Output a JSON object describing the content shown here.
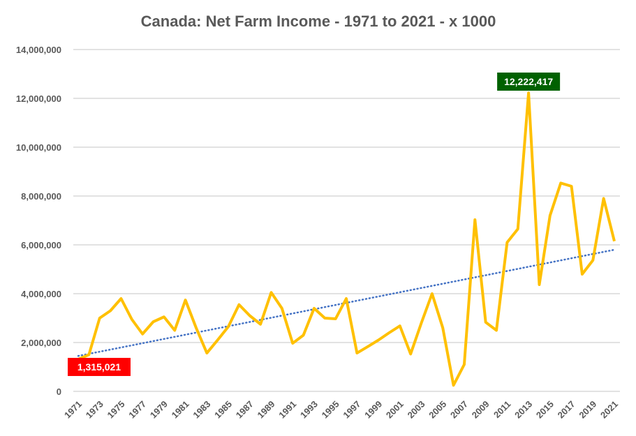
{
  "chart_data": {
    "type": "line",
    "title": "Canada: Net Farm Income - 1971 to 2021 - x 1000",
    "xlabel": "",
    "ylabel": "",
    "ylim": [
      0,
      14000000
    ],
    "yticks": [
      "0",
      "2,000,000",
      "4,000,000",
      "6,000,000",
      "8,000,000",
      "10,000,000",
      "12,000,000",
      "14,000,000"
    ],
    "ytick_values": [
      0,
      2000000,
      4000000,
      6000000,
      8000000,
      10000000,
      12000000,
      14000000
    ],
    "grid": true,
    "x": [
      1971,
      1972,
      1973,
      1974,
      1975,
      1976,
      1977,
      1978,
      1979,
      1980,
      1981,
      1982,
      1983,
      1984,
      1985,
      1986,
      1987,
      1988,
      1989,
      1990,
      1991,
      1992,
      1993,
      1994,
      1995,
      1996,
      1997,
      1998,
      1999,
      2000,
      2001,
      2002,
      2003,
      2004,
      2005,
      2006,
      2007,
      2008,
      2009,
      2010,
      2011,
      2012,
      2013,
      2014,
      2015,
      2016,
      2017,
      2018,
      2019,
      2020,
      2021
    ],
    "xtick_labels": [
      "1971",
      "1973",
      "1975",
      "1977",
      "1979",
      "1981",
      "1983",
      "1985",
      "1987",
      "1989",
      "1991",
      "1993",
      "1995",
      "1997",
      "1999",
      "2001",
      "2003",
      "2005",
      "2007",
      "2009",
      "2011",
      "2013",
      "2015",
      "2017",
      "2019",
      "2021"
    ],
    "series": [
      {
        "name": "Net Farm Income",
        "color": "#FFC000",
        "values": [
          1315021,
          1500000,
          3000000,
          3300000,
          3800000,
          2950000,
          2350000,
          2850000,
          3050000,
          2500000,
          3740000,
          2600000,
          1570000,
          2100000,
          2650000,
          3550000,
          3100000,
          2750000,
          4050000,
          3400000,
          1970000,
          2300000,
          3400000,
          3000000,
          2970000,
          3800000,
          1570000,
          1830000,
          2100000,
          2400000,
          2680000,
          1530000,
          2800000,
          4000000,
          2600000,
          250000,
          1100000,
          7030000,
          2830000,
          2500000,
          6100000,
          6650000,
          12222417,
          4370000,
          7200000,
          8530000,
          8400000,
          4800000,
          5370000,
          7900000,
          6150000
        ]
      },
      {
        "name": "Linear trend",
        "color": "#4472C4",
        "style": "dotted",
        "values_endpoints": [
          1450000,
          5800000
        ]
      }
    ],
    "annotations": [
      {
        "text": "1,315,021",
        "x": 1971,
        "value": 1315021,
        "bg": "#FF0000"
      },
      {
        "text": "12,222,417",
        "x": 2013,
        "value": 12222417,
        "bg": "#006100"
      }
    ]
  }
}
